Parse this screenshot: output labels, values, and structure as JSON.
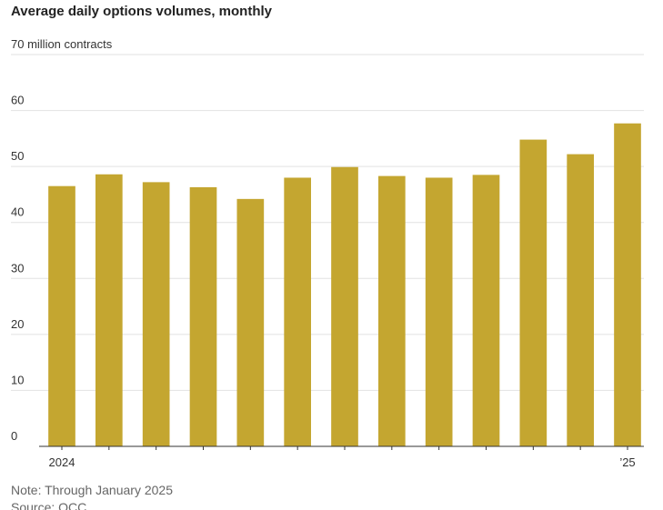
{
  "chart_data": {
    "type": "bar",
    "title": "Average daily options volumes, monthly",
    "categories": [
      "2024",
      null,
      null,
      null,
      null,
      null,
      null,
      null,
      null,
      null,
      null,
      null,
      "’25"
    ],
    "values": [
      46.5,
      48.6,
      47.2,
      46.3,
      44.2,
      48.0,
      49.9,
      48.3,
      48.0,
      48.5,
      54.8,
      52.2,
      57.7
    ],
    "color": "#c4a630",
    "ylim": [
      0,
      70
    ],
    "yticks": [
      0,
      10,
      20,
      30,
      40,
      50,
      60,
      {
        "value": 70,
        "label": "70 million contracts"
      }
    ],
    "grid": true,
    "note": "Note: Through January 2025",
    "source": "Source: OCC"
  }
}
